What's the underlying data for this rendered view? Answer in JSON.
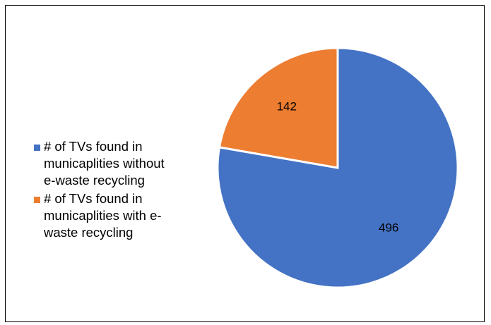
{
  "chart_data": {
    "type": "pie",
    "title": "",
    "series": [
      {
        "name": "# of TVs found in municaplities without e-waste recycling",
        "value": 496,
        "color": "#4472C4",
        "data_label": "496"
      },
      {
        "name": "# of TVs found in municaplities with e-waste recycling",
        "value": 142,
        "color": "#ED7D31",
        "data_label": "142"
      }
    ],
    "legend_placement": "left",
    "legend_lines": [
      "# of TVs found in\nmunicaplities without\ne-waste recycling",
      "# of TVs found in\nmunicaplities with e-\nwaste recycling"
    ]
  }
}
